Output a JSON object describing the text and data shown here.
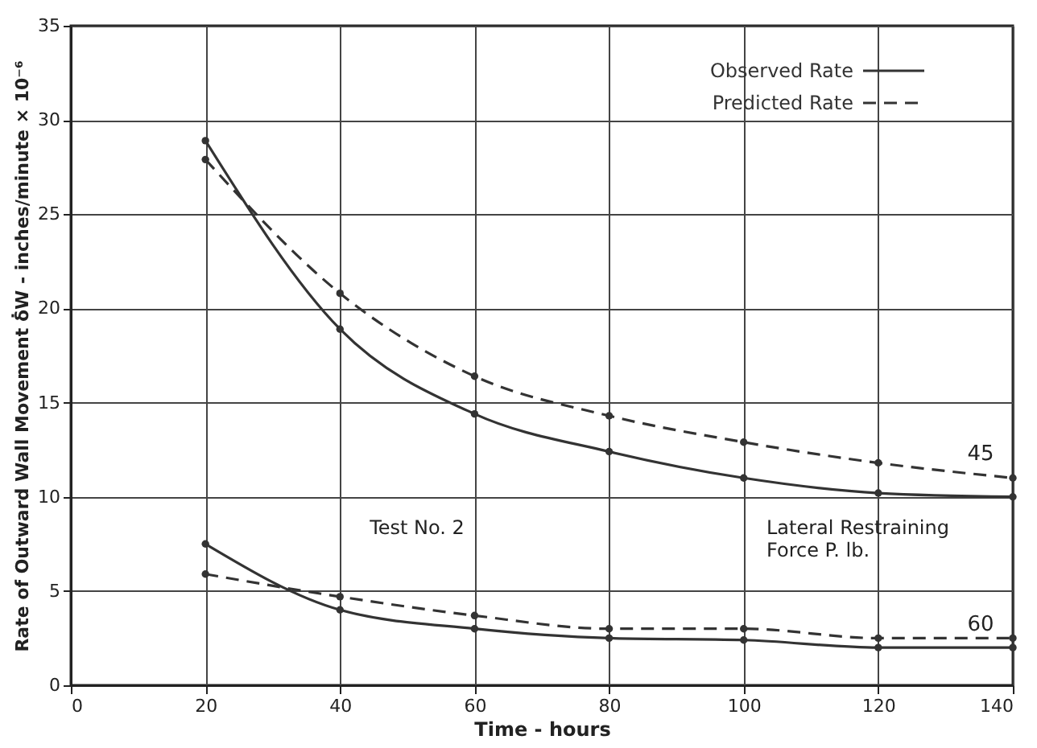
{
  "chart_data": {
    "type": "line",
    "xlabel": "Time - hours",
    "ylabel": "Rate of Outward Wall Movement  δ̇W - inches/minute × 10⁻⁶",
    "x": [
      20,
      40,
      60,
      80,
      100,
      120,
      140
    ],
    "series": [
      {
        "name": "Observed Rate",
        "color": "#333333",
        "line_style": "solid",
        "values": [
          28.9,
          18.9,
          14.4,
          12.4,
          11.0,
          10.2,
          10.0
        ]
      },
      {
        "name": "Predicted Rate",
        "color": "#333333",
        "line_style": "dashed",
        "values": [
          27.9,
          20.8,
          16.4,
          14.3,
          12.9,
          11.8,
          11.0
        ]
      },
      {
        "color": "#333333",
        "line_style": "solid",
        "values": [
          7.5,
          4.0,
          3.0,
          2.5,
          2.4,
          2.0,
          2.0
        ]
      },
      {
        "color": "#333333",
        "line_style": "dashed",
        "values": [
          5.9,
          4.7,
          3.7,
          3.0,
          3.0,
          2.5,
          2.5
        ]
      }
    ],
    "xlim": [
      0,
      140
    ],
    "xticks": [
      0,
      20,
      40,
      60,
      80,
      100,
      120,
      140
    ],
    "ylim": [
      0,
      35
    ],
    "yticks": [
      0,
      5,
      10,
      15,
      20,
      25,
      30,
      35
    ],
    "grid": true,
    "legend": "top right",
    "marker": "circle",
    "annotations": [
      "45",
      "60",
      "Test  No. 2",
      "Lateral Restraining Force P. lb."
    ]
  }
}
